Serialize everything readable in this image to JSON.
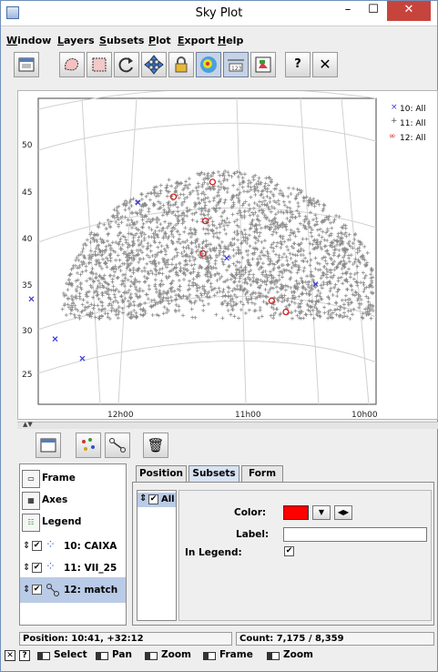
{
  "window": {
    "title": "Sky Plot",
    "min_glyph": "–",
    "max_glyph": "☐",
    "close_glyph": "✕"
  },
  "menu": [
    {
      "pre": "",
      "ul": "W",
      "post": "indow"
    },
    {
      "pre": "",
      "ul": "L",
      "post": "ayers"
    },
    {
      "pre": "",
      "ul": "S",
      "post": "ubsets"
    },
    {
      "pre": "",
      "ul": "P",
      "post": "lot"
    },
    {
      "pre": "",
      "ul": "E",
      "post": "xport"
    },
    {
      "pre": "",
      "ul": "H",
      "post": "elp"
    }
  ],
  "toolbar": {
    "icons": [
      "new-window-icon",
      "draw-region-icon",
      "blob-select-icon",
      "replot-icon",
      "navigate-icon",
      "lock-icon",
      "density-icon",
      "axes-grid-icon",
      "export-icon",
      "help-icon",
      "close-icon"
    ],
    "help_glyph": "?",
    "close_glyph": "✕"
  },
  "plot": {
    "y_ticks": [
      "50",
      "45",
      "40",
      "35",
      "30",
      "25"
    ],
    "x_ticks": [
      "12h00",
      "11h00",
      "10h00"
    ],
    "legend": [
      {
        "marker": "×",
        "label": "10: All",
        "color": "#3b3bd6"
      },
      {
        "marker": "+",
        "label": "11: All",
        "color": "#555555"
      },
      {
        "marker": "∞",
        "label": "12: All",
        "color": "#d02020"
      }
    ]
  },
  "chart_data": {
    "type": "scatter",
    "xlabel": "",
    "ylabel": "",
    "x_ticks": [
      "12h00",
      "11h00",
      "10h00"
    ],
    "y_ticks": [
      50,
      45,
      40,
      35,
      30,
      25
    ],
    "ylim": [
      22,
      54
    ],
    "grid": true,
    "legend_position": "top-right",
    "series": [
      {
        "name": "10: All",
        "marker": "x",
        "color": "#3b3bd6",
        "points": [
          [
            12.75,
            33.2
          ],
          [
            12.55,
            28.9
          ],
          [
            12.32,
            26.8
          ],
          [
            11.85,
            43.6
          ],
          [
            11.1,
            37.6
          ],
          [
            10.35,
            34.8
          ]
        ]
      },
      {
        "name": "11: All",
        "marker": "+",
        "color": "#555555",
        "count": "7,175 / 8,359"
      },
      {
        "name": "12: All",
        "marker": "o",
        "color": "#d02020",
        "points": [
          [
            11.55,
            44.2
          ],
          [
            11.22,
            45.8
          ],
          [
            11.28,
            41.6
          ],
          [
            11.3,
            38.1
          ],
          [
            10.6,
            31.8
          ],
          [
            10.72,
            33.0
          ]
        ]
      }
    ]
  },
  "layers_toolbar": {
    "icons": [
      "new-layer-icon",
      "scatter-layer-icon",
      "pair-layer-icon",
      "delete-layer-icon"
    ],
    "delete_glyph": "🗑"
  },
  "layers": [
    {
      "label": "Frame",
      "icon": "frame-icon"
    },
    {
      "label": "Axes",
      "icon": "axes-icon"
    },
    {
      "label": "Legend",
      "icon": "legend-icon"
    },
    {
      "label": "10: CAIXA",
      "icon": "scatter-layer-icon",
      "checked": true
    },
    {
      "label": "11: VII_25",
      "icon": "scatter-layer-icon",
      "checked": true
    },
    {
      "label": "12: match",
      "icon": "pair-layer-icon",
      "checked": true
    }
  ],
  "tabs": [
    "Position",
    "Subsets",
    "Form"
  ],
  "subsets": {
    "row_label": "All",
    "checked_glyph": "✔",
    "color_label": "Color:",
    "color_value": "#ff0000",
    "label_label": "Label:",
    "label_value": "",
    "legend_label": "In Legend:",
    "dd_glyph": "▼",
    "step_glyph": "◀▶"
  },
  "status": {
    "position": "Position: 10:41, +32:12",
    "count": "Count: 7,175 / 8,359",
    "help_glyph": "?",
    "close_glyph": "✕",
    "modes": [
      "Select",
      "Pan",
      "Zoom",
      "Frame",
      "Zoom"
    ]
  }
}
